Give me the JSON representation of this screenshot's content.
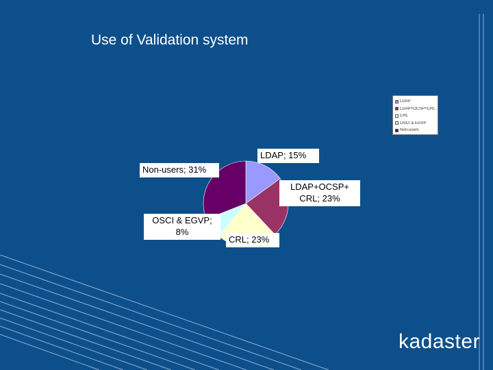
{
  "slide": {
    "title": "Use of Validation system",
    "logo_text": "kadaster"
  },
  "colors": {
    "background": "#0d4f8b",
    "label_bg": "#ffffff",
    "deco_line": "#a7c3de"
  },
  "chart_data": {
    "type": "pie",
    "title": "",
    "legend_position": "top-right",
    "slices": [
      {
        "label": "LDAP",
        "value": 15,
        "label_text": "LDAP; 15%",
        "color": "#9999ff"
      },
      {
        "label": "LDAP+OCSP+CRL",
        "value": 23,
        "label_text": "LDAP+OCSP+ CRL; 23%",
        "color": "#993366"
      },
      {
        "label": "CRL",
        "value": 23,
        "label_text": "CRL; 23%",
        "color": "#ffffcc"
      },
      {
        "label": "OSCI & EGVP",
        "value": 8,
        "label_text": "OSCI & EGVP; 8%",
        "color": "#ccffff"
      },
      {
        "label": "Non-users",
        "value": 31,
        "label_text": "Non-users; 31%",
        "color": "#660066"
      }
    ]
  }
}
